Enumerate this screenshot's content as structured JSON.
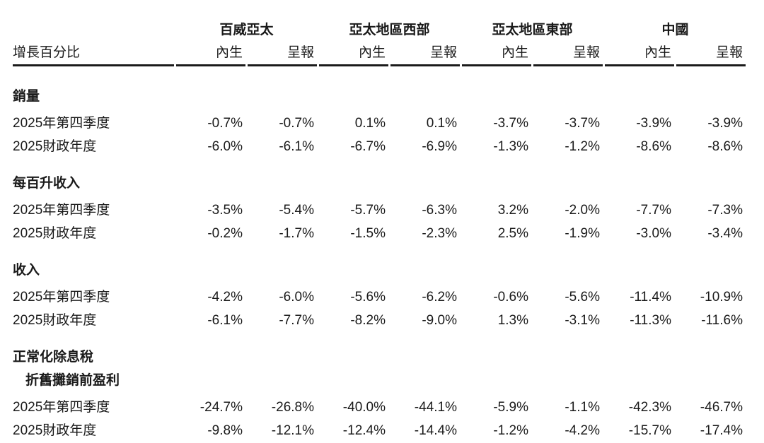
{
  "page": {
    "background_color": "#ffffff",
    "text_color": "#1a1a1a",
    "rule_color": "#1b1b1b"
  },
  "table": {
    "corner_label": "增長百分比",
    "groups": [
      {
        "label": "百威亞太"
      },
      {
        "label": "亞太地區西部"
      },
      {
        "label": "亞太地區東部"
      },
      {
        "label": "中國"
      }
    ],
    "subheaders": [
      "內生",
      "呈報",
      "內生",
      "呈報",
      "內生",
      "呈報",
      "內生",
      "呈報"
    ],
    "sections": [
      {
        "title_lines": [
          "銷量"
        ],
        "rows": [
          {
            "label": "2025年第四季度",
            "values": [
              "-0.7%",
              "-0.7%",
              "0.1%",
              "0.1%",
              "-3.7%",
              "-3.7%",
              "-3.9%",
              "-3.9%"
            ]
          },
          {
            "label": "2025財政年度",
            "values": [
              "-6.0%",
              "-6.1%",
              "-6.7%",
              "-6.9%",
              "-1.3%",
              "-1.2%",
              "-8.6%",
              "-8.6%"
            ]
          }
        ]
      },
      {
        "title_lines": [
          "每百升收入"
        ],
        "rows": [
          {
            "label": "2025年第四季度",
            "values": [
              "-3.5%",
              "-5.4%",
              "-5.7%",
              "-6.3%",
              "3.2%",
              "-2.0%",
              "-7.7%",
              "-7.3%"
            ]
          },
          {
            "label": "2025財政年度",
            "values": [
              "-0.2%",
              "-1.7%",
              "-1.5%",
              "-2.3%",
              "2.5%",
              "-1.9%",
              "-3.0%",
              "-3.4%"
            ]
          }
        ]
      },
      {
        "title_lines": [
          "收入"
        ],
        "rows": [
          {
            "label": "2025年第四季度",
            "values": [
              "-4.2%",
              "-6.0%",
              "-5.6%",
              "-6.2%",
              "-0.6%",
              "-5.6%",
              "-11.4%",
              "-10.9%"
            ]
          },
          {
            "label": "2025財政年度",
            "values": [
              "-6.1%",
              "-7.7%",
              "-8.2%",
              "-9.0%",
              "1.3%",
              "-3.1%",
              "-11.3%",
              "-11.6%"
            ]
          }
        ]
      },
      {
        "title_lines": [
          "正常化除息稅",
          "折舊攤銷前盈利"
        ],
        "rows": [
          {
            "label": "2025年第四季度",
            "values": [
              "-24.7%",
              "-26.8%",
              "-40.0%",
              "-44.1%",
              "-5.9%",
              "-1.1%",
              "-42.3%",
              "-46.7%"
            ]
          },
          {
            "label": "2025財政年度",
            "values": [
              "-9.8%",
              "-12.1%",
              "-12.4%",
              "-14.4%",
              "-1.2%",
              "-4.2%",
              "-15.7%",
              "-17.4%"
            ]
          }
        ]
      }
    ]
  }
}
